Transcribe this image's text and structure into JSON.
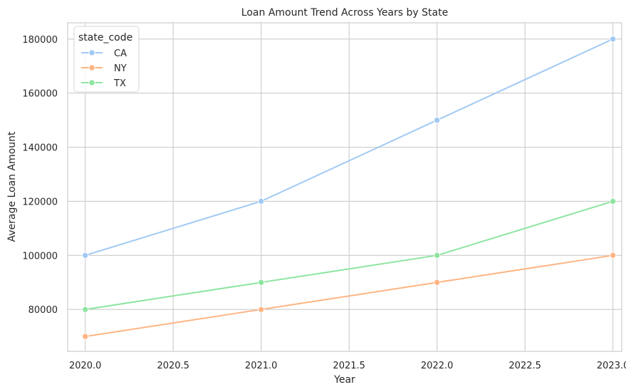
{
  "chart_data": {
    "type": "line",
    "title": "Loan Amount Trend Across Years by State",
    "xlabel": "Year",
    "ylabel": "Average Loan Amount",
    "xlim": [
      2019.9,
      2023.05
    ],
    "ylim": [
      64500,
      186000
    ],
    "x_ticks": [
      2020.0,
      2020.5,
      2021.0,
      2021.5,
      2022.0,
      2022.5,
      2023.0
    ],
    "x_tick_labels": [
      "2020.0",
      "2020.5",
      "2021.0",
      "2021.5",
      "2022.0",
      "2022.5",
      "2023.0"
    ],
    "y_ticks": [
      80000,
      100000,
      120000,
      140000,
      160000,
      180000
    ],
    "y_tick_labels": [
      "80000",
      "100000",
      "120000",
      "140000",
      "160000",
      "180000"
    ],
    "grid": true,
    "legend": {
      "title": "state_code",
      "placement": "top-left"
    },
    "x": [
      2020,
      2021,
      2022,
      2023
    ],
    "series": [
      {
        "name": "CA",
        "color": "#a1c9f4",
        "values": [
          100000,
          120000,
          150000,
          180000
        ]
      },
      {
        "name": "NY",
        "color": "#ffb482",
        "values": [
          70000,
          80000,
          90000,
          100000
        ]
      },
      {
        "name": "TX",
        "color": "#8de5a1",
        "values": [
          80000,
          90000,
          100000,
          120000
        ]
      }
    ]
  }
}
